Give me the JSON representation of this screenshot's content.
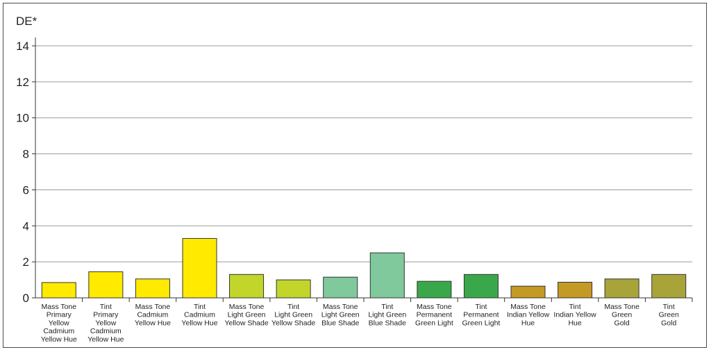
{
  "chart_data": {
    "type": "bar",
    "ylabel": "DE*",
    "ylim": [
      0,
      14
    ],
    "yticks": [
      0,
      2,
      4,
      6,
      8,
      10,
      12,
      14
    ],
    "grid": true,
    "categories": [
      [
        "Mass Tone",
        "Primary",
        "Yellow",
        "Cadmium",
        "Yellow Hue"
      ],
      [
        "Tint",
        "Primary",
        "Yellow",
        "Cadmium",
        "Yellow Hue"
      ],
      [
        "Mass Tone",
        "Cadmium",
        "Yellow Hue"
      ],
      [
        "Tint",
        "Cadmium",
        "Yellow Hue"
      ],
      [
        "Mass Tone",
        "Light Green",
        "Yellow Shade"
      ],
      [
        "Tint",
        "Light Green",
        "Yellow Shade"
      ],
      [
        "Mass Tone",
        "Light Green",
        "Blue Shade"
      ],
      [
        "Tint",
        "Light Green",
        "Blue Shade"
      ],
      [
        "Mass Tone",
        "Permanent",
        "Green Light"
      ],
      [
        "Tint",
        "Permanent",
        "Green Light"
      ],
      [
        "Mass Tone",
        "Indian Yellow",
        "Hue"
      ],
      [
        "Tint",
        "Indian Yellow",
        "Hue"
      ],
      [
        "Mass Tone",
        "Green",
        "Gold"
      ],
      [
        "Tint",
        "Green",
        "Gold"
      ]
    ],
    "values": [
      0.85,
      1.45,
      1.05,
      3.3,
      1.3,
      1.0,
      1.15,
      2.5,
      0.92,
      1.3,
      0.65,
      0.87,
      1.05,
      1.3
    ],
    "colors": [
      "#ffea00",
      "#ffea00",
      "#ffea00",
      "#ffea00",
      "#c2d52b",
      "#c2d52b",
      "#80c99c",
      "#80c99c",
      "#3aa84a",
      "#3aa84a",
      "#c49a26",
      "#c49a26",
      "#a8a43a",
      "#a8a43a"
    ]
  }
}
